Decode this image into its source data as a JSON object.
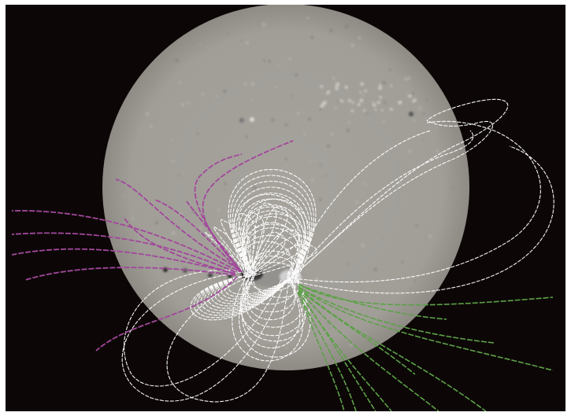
{
  "image": {
    "subject": "magnetogram-with-field-lines",
    "colors": {
      "background": "#0c0706",
      "disk": "#a29f99",
      "disk_edge": "#8f8b85",
      "closed_lines": "#ffffff",
      "open_lines_east": "#a2479c",
      "open_lines_west": "#5da148"
    }
  }
}
